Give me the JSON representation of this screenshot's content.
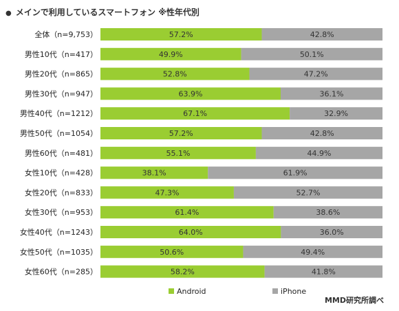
{
  "title": "メインで利用しているスマートフォン ※性年代別",
  "source": "MMD研究所調べ",
  "colors": {
    "android": "#9ACD32",
    "iphone": "#A6A6A6"
  },
  "chart_data": {
    "type": "bar",
    "orientation": "horizontal",
    "stacked": true,
    "percent": true,
    "categories": [
      "全体（n=9,753）",
      "男性10代（n=417）",
      "男性20代（n=865）",
      "男性30代（n=947）",
      "男性40代（n=1212）",
      "男性50代（n=1054）",
      "男性60代（n=481）",
      "女性10代（n=428）",
      "女性20代（n=833）",
      "女性30代（n=953）",
      "女性40代（n=1243）",
      "女性50代（n=1035）",
      "女性60代（n=285）"
    ],
    "series": [
      {
        "name": "Android",
        "values": [
          57.2,
          49.9,
          52.8,
          63.9,
          67.1,
          57.2,
          55.1,
          38.1,
          47.3,
          61.4,
          64.0,
          50.6,
          58.2
        ],
        "labels": [
          "57.2%",
          "49.9%",
          "52.8%",
          "63.9%",
          "67.1%",
          "57.2%",
          "55.1%",
          "38.1%",
          "47.3%",
          "61.4%",
          "64.0%",
          "50.6%",
          "58.2%"
        ]
      },
      {
        "name": "iPhone",
        "values": [
          42.8,
          50.1,
          47.2,
          36.1,
          32.9,
          42.8,
          44.9,
          61.9,
          52.7,
          38.6,
          36.0,
          49.4,
          41.8
        ],
        "labels": [
          "42.8%",
          "50.1%",
          "47.2%",
          "36.1%",
          "32.9%",
          "42.8%",
          "44.9%",
          "61.9%",
          "52.7%",
          "38.6%",
          "36.0%",
          "49.4%",
          "41.8%"
        ]
      }
    ],
    "xlim": [
      0,
      100
    ],
    "legend": "bottom"
  }
}
